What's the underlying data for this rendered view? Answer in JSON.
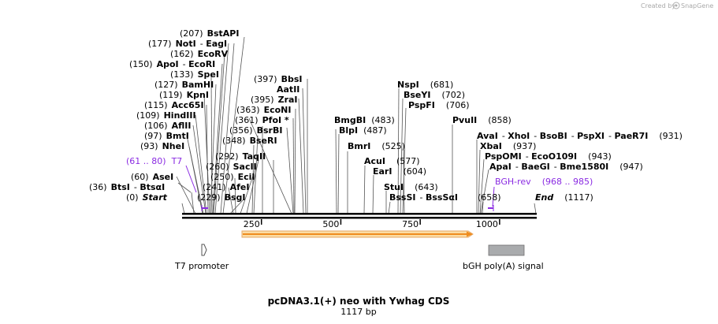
{
  "credit": {
    "prefix": "Created by",
    "brand": "SnapGene"
  },
  "title": "pcDNA3.1(+) neo with Ywhag CDS",
  "length_label": "1117 bp",
  "sequence_length": 1117,
  "colors": {
    "primer": "#8a2be2",
    "cds_fill": "#fbdca4",
    "cds_stroke": "#e6a96a",
    "arrow": "#ef8c1e",
    "feature_box": "#a9abad"
  },
  "ruler": {
    "ticks": [
      "250",
      "500",
      "750",
      "1000"
    ]
  },
  "sites": [
    {
      "pos": "(0)",
      "name": "Start",
      "italic": true
    },
    {
      "pos": "(36)",
      "name": "BtsI",
      "name2": "BtsαI"
    },
    {
      "pos": "(60)",
      "name": "AseI"
    },
    {
      "pos": "(93)",
      "name": "NheI"
    },
    {
      "pos": "(97)",
      "name": "BmtI"
    },
    {
      "pos": "(106)",
      "name": "AflII"
    },
    {
      "pos": "(109)",
      "name": "HindIII"
    },
    {
      "pos": "(115)",
      "name": "Acc65I"
    },
    {
      "pos": "(119)",
      "name": "KpnI"
    },
    {
      "pos": "(127)",
      "name": "BamHI"
    },
    {
      "pos": "(133)",
      "name": "SpeI"
    },
    {
      "pos": "(150)",
      "name": "ApoI",
      "name2": "EcoRI"
    },
    {
      "pos": "(162)",
      "name": "EcoRV"
    },
    {
      "pos": "(177)",
      "name": "NotI",
      "name2": "EagI"
    },
    {
      "pos": "(207)",
      "name": "BstAPI"
    },
    {
      "pos": "(229)",
      "name": "BsgI"
    },
    {
      "pos": "(241)",
      "name": "AfeI"
    },
    {
      "pos": "(250)",
      "name": "EciI"
    },
    {
      "pos": "(260)",
      "name": "SacII"
    },
    {
      "pos": "(292)",
      "name": "TaqII"
    },
    {
      "pos": "(348)",
      "name": "BseRI"
    },
    {
      "pos": "(356)",
      "name": "BsrBI"
    },
    {
      "pos": "(361)",
      "name": "PfoI *"
    },
    {
      "pos": "(363)",
      "name": "EcoNI"
    },
    {
      "pos": "(395)",
      "name": "ZraI"
    },
    {
      "name": "AatII"
    },
    {
      "pos": "(397)",
      "name": "BbsI"
    },
    {
      "pos": "(483)",
      "name": "BmgBI"
    },
    {
      "pos": "(487)",
      "name": "BlpI"
    },
    {
      "pos": "(525)",
      "name": "BmrI"
    },
    {
      "pos": "(577)",
      "name": "AcuI"
    },
    {
      "pos": "(604)",
      "name": "EarI"
    },
    {
      "pos": "(643)",
      "name": "StuI"
    },
    {
      "name": "BssSI",
      "name2": "BssSαI"
    },
    {
      "pos": "(681)",
      "name": "NspI"
    },
    {
      "pos": "(702)",
      "name": "BseYI"
    },
    {
      "pos": "(706)",
      "name": "PspFI"
    },
    {
      "pos": "(858)",
      "name": "PvuII"
    },
    {
      "pos": "(931)",
      "name": "AvaI",
      "name2": "XhoI",
      "name3": "BsoBI",
      "name4": "PspXI",
      "name5": "PaeR7I"
    },
    {
      "pos": "(937)",
      "name": "XbaI"
    },
    {
      "pos": "(943)",
      "name": "PspOMI",
      "name2": "EcoO109I"
    },
    {
      "pos": "(947)",
      "name": "ApaI",
      "name2": "BaeGI",
      "name3": "Bme1580I"
    },
    {
      "pos": "(658)"
    },
    {
      "pos": "(1117)",
      "name": "End",
      "italic": true
    }
  ],
  "primers": [
    {
      "name": "T7",
      "range": "(61 .. 80)"
    },
    {
      "name": "BGH-rev",
      "range": "(968 .. 985)"
    }
  ],
  "features": [
    {
      "name": "T7 promoter"
    },
    {
      "name": "bGH poly(A) signal"
    }
  ]
}
